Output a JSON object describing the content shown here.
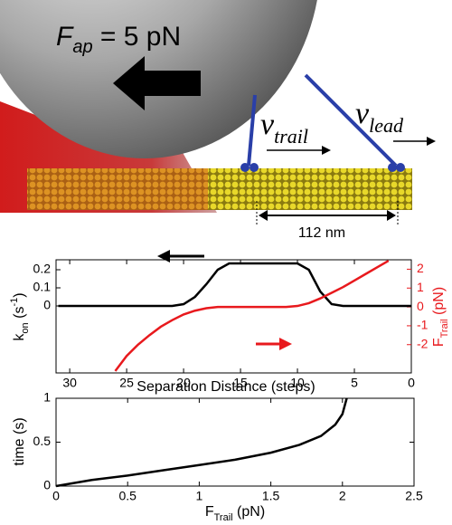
{
  "illustration": {
    "force_label": [
      "F",
      "ap",
      " = 5 pN"
    ],
    "trail_label": [
      "ν",
      "trail"
    ],
    "lead_label": [
      "ν",
      "lead"
    ],
    "distance_label": "112 nm"
  },
  "chart_data": [
    {
      "type": "line",
      "x": [
        31,
        30,
        29,
        28,
        27,
        26,
        25,
        24,
        23,
        22,
        21,
        20,
        19,
        18,
        17,
        16,
        15,
        14,
        13,
        12,
        11,
        10,
        9,
        8,
        7,
        6,
        5,
        4,
        3,
        2,
        1,
        0
      ],
      "xlim": [
        31.2,
        0
      ],
      "xticks": [
        30,
        25,
        20,
        15,
        10,
        5,
        0
      ],
      "xlabel": "Separation Distance (steps)",
      "ylabel": [
        "k",
        "on",
        " (s",
        "-1",
        ")"
      ],
      "ylim": [
        -0.37,
        0.255
      ],
      "yticks": [
        0,
        0.1,
        0.2
      ],
      "y2label": [
        "F",
        "Trail",
        " (pN)"
      ],
      "y2lim": [
        -3.5,
        2.5
      ],
      "y2ticks": [
        -2,
        -1,
        0,
        1,
        2
      ],
      "series": [
        {
          "color": "#000000",
          "values": [
            0,
            0,
            0,
            0,
            0,
            0,
            0,
            0,
            0,
            0,
            0,
            0.01,
            0.05,
            0.12,
            0.2,
            0.235,
            0.235,
            0.235,
            0.235,
            0.235,
            0.235,
            0.235,
            0.2,
            0.08,
            0.01,
            0,
            0,
            0,
            0,
            0,
            0,
            0
          ]
        },
        {
          "color": "#e8191d",
          "axis": "y2",
          "values": [
            null,
            null,
            null,
            null,
            null,
            -3.4,
            -2.6,
            -2.0,
            -1.5,
            -1.05,
            -0.7,
            -0.4,
            -0.2,
            -0.07,
            0,
            0,
            0,
            0,
            0,
            0,
            0,
            0.05,
            0.2,
            0.45,
            0.75,
            1.05,
            1.4,
            1.75,
            2.1,
            2.45,
            null,
            null
          ]
        }
      ]
    },
    {
      "type": "line",
      "x": [
        0,
        0.25,
        0.5,
        0.75,
        1,
        1.25,
        1.5,
        1.7,
        1.85,
        1.95,
        2,
        2.03
      ],
      "xlim": [
        0,
        2.5
      ],
      "xticks": [
        0,
        0.5,
        1,
        1.5,
        2,
        2.5
      ],
      "xlabel": [
        "F",
        "Trail",
        " (pN)"
      ],
      "ylabel": "time (s)",
      "ylim": [
        0,
        1
      ],
      "yticks": [
        0,
        0.5,
        1
      ],
      "series": [
        {
          "color": "#000000",
          "values": [
            0,
            0.07,
            0.12,
            0.18,
            0.24,
            0.3,
            0.38,
            0.47,
            0.57,
            0.7,
            0.82,
            1
          ]
        }
      ]
    }
  ]
}
